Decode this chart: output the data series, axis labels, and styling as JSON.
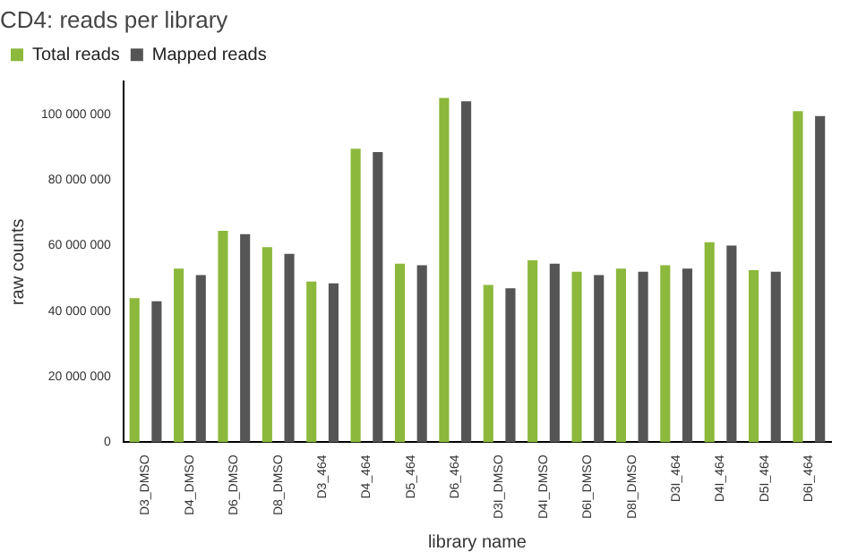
{
  "chart_data": {
    "type": "bar",
    "title": "CD4: reads per library",
    "xlabel": "library name",
    "ylabel": "raw counts",
    "categories": [
      "D3_DMSO",
      "D4_DMSO",
      "D6_DMSO",
      "D8_DMSO",
      "D3_464",
      "D4_464",
      "D5_464",
      "D6_464",
      "D3I_DMSO",
      "D4I_DMSO",
      "D6I_DMSO",
      "D8I_DMSO",
      "D3I_464",
      "D4I_464",
      "D5I_464",
      "D6I_464"
    ],
    "series": [
      {
        "name": "Total reads",
        "color": "#8cb83c",
        "values": [
          44000000,
          53000000,
          64500000,
          59500000,
          49000000,
          89500000,
          54500000,
          105000000,
          48000000,
          55500000,
          52000000,
          53000000,
          54000000,
          61000000,
          52500000,
          101000000
        ]
      },
      {
        "name": "Mapped reads",
        "color": "#555555",
        "values": [
          43000000,
          51000000,
          63500000,
          57500000,
          48500000,
          88500000,
          54000000,
          104000000,
          47000000,
          54500000,
          51000000,
          52000000,
          53000000,
          60000000,
          52000000,
          99500000
        ]
      }
    ],
    "ylim": [
      0,
      110000000
    ],
    "yticks": [
      {
        "value": 0,
        "label": "0"
      },
      {
        "value": 20000000,
        "label": "20 000 000"
      },
      {
        "value": 40000000,
        "label": "40 000 000"
      },
      {
        "value": 60000000,
        "label": "60 000 000"
      },
      {
        "value": 80000000,
        "label": "80 000 000"
      },
      {
        "value": 100000000,
        "label": "100 000 000"
      }
    ],
    "grid": false,
    "legend": "top left"
  }
}
